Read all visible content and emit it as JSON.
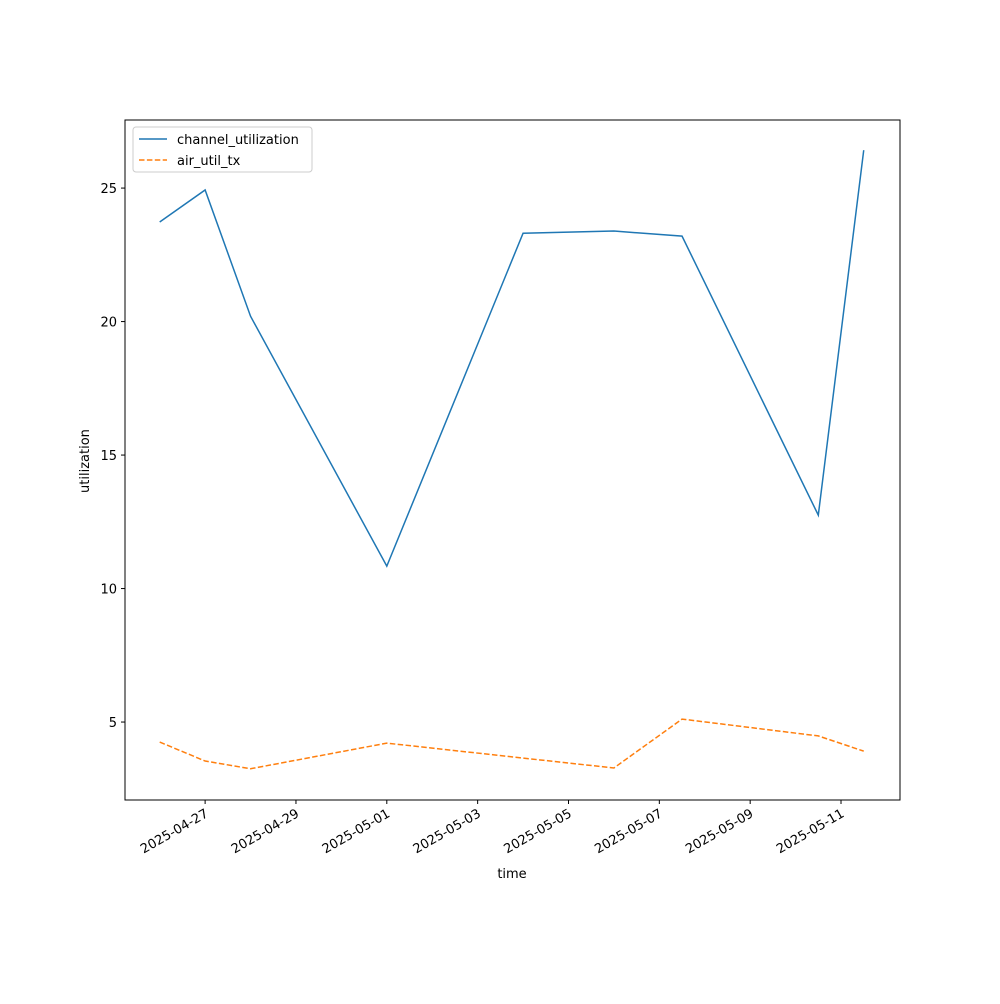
{
  "chart_data": {
    "type": "line",
    "xlabel": "time",
    "ylabel": "utilization",
    "x": [
      "2025-04-26",
      "2025-04-27",
      "2025-04-28",
      "2025-05-01",
      "2025-05-04",
      "2025-05-06",
      "2025-05-07T12:00",
      "2025-05-10T12:00",
      "2025-05-11T12:00"
    ],
    "series": [
      {
        "name": "channel_utilization",
        "color": "#1f77b4",
        "linestyle": "solid",
        "values": [
          23.73,
          24.93,
          20.2,
          10.84,
          23.31,
          23.39,
          23.2,
          12.75,
          26.42
        ]
      },
      {
        "name": "air_util_tx",
        "color": "#ff7f0e",
        "linestyle": "dashed",
        "values": [
          4.25,
          3.54,
          3.25,
          4.21,
          3.65,
          3.28,
          5.11,
          4.48,
          3.91
        ]
      }
    ],
    "xlim": [
      "2025-04-25T05:40",
      "2025-05-12T07:10"
    ],
    "xticks": [
      "2025-04-27",
      "2025-04-29",
      "2025-05-01",
      "2025-05-03",
      "2025-05-05",
      "2025-05-07",
      "2025-05-09",
      "2025-05-11"
    ],
    "ylim": [
      2.08,
      27.55
    ],
    "yticks": [
      5,
      10,
      15,
      20,
      25
    ],
    "legend": "upper left"
  }
}
